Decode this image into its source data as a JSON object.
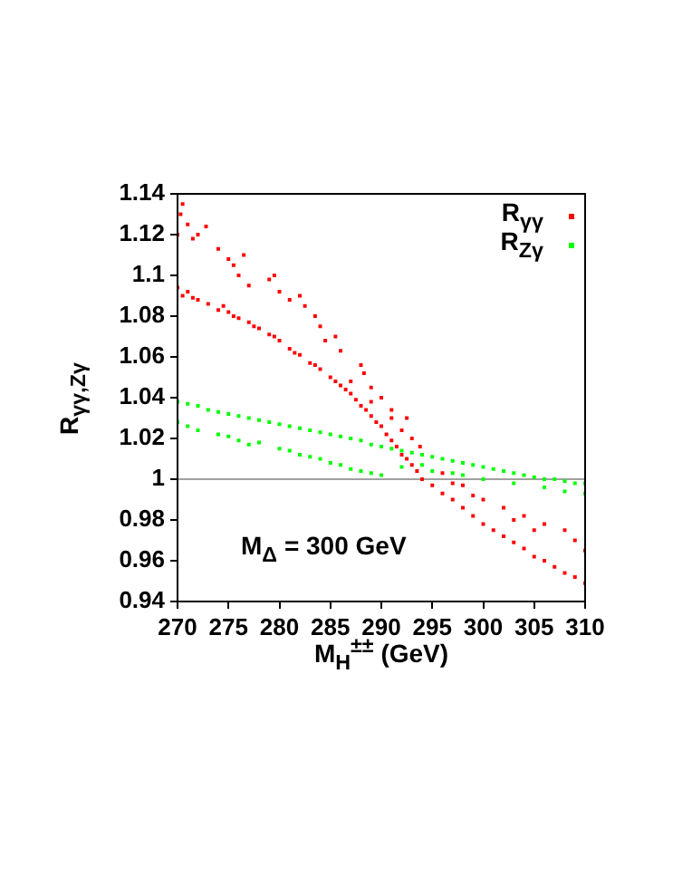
{
  "chart_data": {
    "type": "scatter",
    "xlabel": "M$_{H}$$^{±±}$ (GeV)",
    "ylabel": "R$_{γγ,Zγ}$",
    "xlim": [
      270,
      310
    ],
    "xticks": [
      270,
      275,
      280,
      285,
      290,
      295,
      300,
      305,
      310
    ],
    "ylim": [
      0.94,
      1.14
    ],
    "yticks": [
      0.94,
      0.96,
      0.98,
      1,
      1.02,
      1.04,
      1.06,
      1.08,
      1.1,
      1.12,
      1.14
    ],
    "grid": false,
    "legend": "top right",
    "marker": "square",
    "annotations": [
      "M$_{Δ}$ = 300 GeV"
    ],
    "ref_lines": [
      {
        "axis": "y",
        "value": 1,
        "color": "#a0a0a0"
      }
    ],
    "series": [
      {
        "name": "R$_{γγ}$",
        "color": "#ff0000",
        "x": [
          270,
          270.5,
          271,
          271.5,
          272,
          273,
          274,
          274.5,
          275,
          275.5,
          276,
          277,
          277.5,
          278,
          279,
          279.5,
          280,
          281,
          281.5,
          282,
          283,
          283.5,
          284,
          285,
          285.5,
          286,
          286.5,
          287,
          287.5,
          288,
          288.5,
          289,
          289.5,
          290,
          290.5,
          291,
          291.5,
          292,
          292.5,
          293,
          293.5,
          294,
          295,
          296,
          297,
          298,
          299,
          300,
          301,
          302,
          303,
          304,
          305,
          306,
          307,
          308,
          309,
          310,
          287,
          289,
          291,
          292,
          293.8,
          296,
          298,
          300,
          302,
          304,
          306,
          308,
          310,
          309,
          305,
          303,
          299,
          297,
          270,
          270.3,
          270.5,
          271,
          271.5,
          272,
          272.8,
          274,
          275,
          275.5,
          276,
          276.5,
          277,
          279,
          279.5,
          280,
          281,
          282,
          282.5,
          283.5,
          284,
          284.5,
          285.5,
          286,
          288,
          288.3,
          289,
          290,
          291,
          292.5,
          293
        ],
        "values": [
          1.094,
          1.09,
          1.092,
          1.089,
          1.088,
          1.086,
          1.083,
          1.085,
          1.082,
          1.08,
          1.079,
          1.077,
          1.075,
          1.074,
          1.071,
          1.07,
          1.068,
          1.064,
          1.062,
          1.061,
          1.057,
          1.056,
          1.054,
          1.05,
          1.048,
          1.046,
          1.044,
          1.042,
          1.039,
          1.036,
          1.034,
          1.031,
          1.028,
          1.026,
          1.022,
          1.019,
          1.016,
          1.012,
          1.01,
          1.007,
          1.004,
          1,
          0.997,
          0.993,
          0.99,
          0.986,
          0.982,
          0.978,
          0.975,
          0.972,
          0.969,
          0.966,
          0.962,
          0.96,
          0.957,
          0.954,
          0.952,
          0.949,
          1.048,
          1.038,
          1.03,
          1.024,
          1.016,
          1.003,
          0.997,
          0.99,
          0.986,
          0.982,
          0.978,
          0.975,
          0.965,
          0.97,
          0.975,
          0.98,
          0.992,
          0.998,
          1.12,
          1.13,
          1.135,
          1.125,
          1.118,
          1.12,
          1.124,
          1.113,
          1.108,
          1.105,
          1.1,
          1.11,
          1.095,
          1.098,
          1.1,
          1.092,
          1.088,
          1.09,
          1.085,
          1.08,
          1.075,
          1.068,
          1.07,
          1.063,
          1.056,
          1.052,
          1.045,
          1.04,
          1.034,
          1.03,
          1.02
        ]
      },
      {
        "name": "R$_{Zγ}$",
        "color": "#00ff00",
        "x": [
          270,
          271,
          272,
          273,
          274,
          275,
          276,
          277,
          278,
          279,
          280,
          281,
          282,
          283,
          284,
          285,
          286,
          287,
          288,
          289,
          290,
          291,
          292,
          293,
          294,
          295,
          296,
          297,
          298,
          299,
          300,
          301,
          302,
          303,
          304,
          305,
          306,
          307,
          308,
          309,
          310,
          270,
          271,
          272,
          274,
          275,
          276,
          277,
          278,
          280,
          281,
          282,
          283,
          284,
          285,
          286,
          287,
          288,
          289,
          290,
          292,
          295,
          298,
          300,
          303,
          306,
          308,
          310,
          294,
          297
        ],
        "values": [
          1.038,
          1.037,
          1.036,
          1.034,
          1.033,
          1.032,
          1.031,
          1.03,
          1.029,
          1.028,
          1.027,
          1.026,
          1.025,
          1.024,
          1.023,
          1.022,
          1.021,
          1.02,
          1.019,
          1.017,
          1.016,
          1.015,
          1.014,
          1.013,
          1.012,
          1.011,
          1.01,
          1.009,
          1.008,
          1.007,
          1.006,
          1.005,
          1.004,
          1.003,
          1.002,
          1.001,
          1,
          1,
          0.999,
          0.998,
          0.998,
          1.028,
          1.026,
          1.024,
          1.022,
          1.021,
          1.019,
          1.017,
          1.018,
          1.015,
          1.014,
          1.012,
          1.011,
          1.01,
          1.008,
          1.007,
          1.005,
          1.004,
          1.003,
          1.002,
          1.006,
          1.004,
          1.002,
          1,
          0.998,
          0.996,
          0.994,
          0.993,
          1.007,
          1.003
        ]
      }
    ]
  }
}
